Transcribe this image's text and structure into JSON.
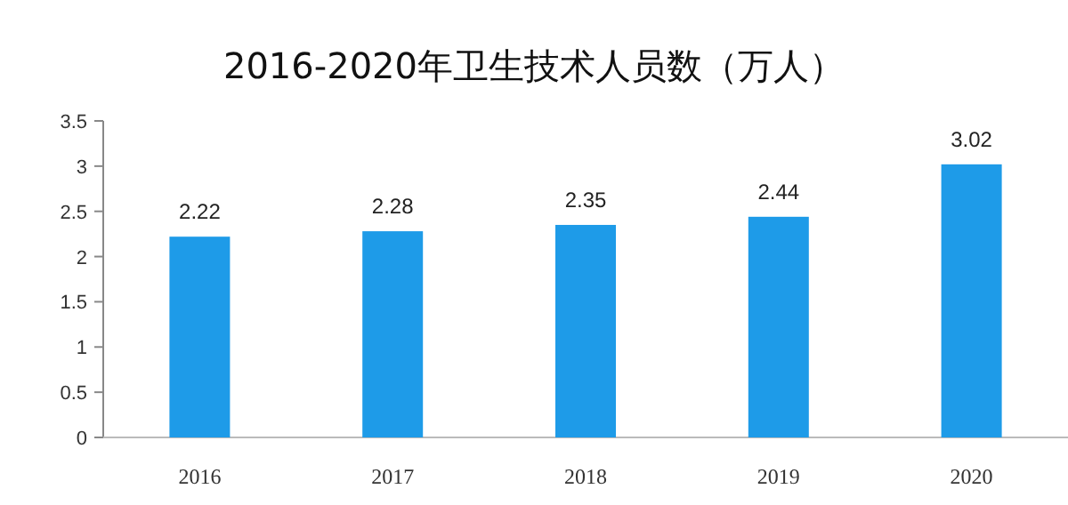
{
  "chart_data": {
    "type": "bar",
    "title": "2016-2020年卫生技术人员数（万人）",
    "categories": [
      "2016",
      "2017",
      "2018",
      "2019",
      "2020"
    ],
    "values": [
      2.22,
      2.28,
      2.35,
      2.44,
      3.02
    ],
    "color": "#1e9be8",
    "ylim": [
      0,
      3.5
    ],
    "yticks": [
      0,
      {
        "value": 0.5,
        "label": "0.5"
      },
      1,
      {
        "value": 1.5,
        "label": "1.5"
      },
      2,
      {
        "value": 2.5,
        "label": "2.5"
      },
      3,
      {
        "value": 3.5,
        "label": "3.5"
      }
    ],
    "data_labels": true,
    "grid": false
  }
}
